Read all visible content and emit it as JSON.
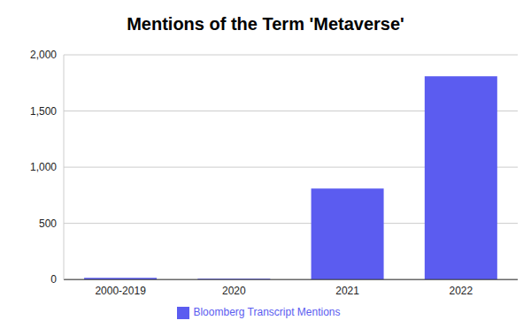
{
  "chart_data": {
    "type": "bar",
    "title": "Mentions of the Term 'Metaverse'",
    "categories": [
      "2000-2019",
      "2020",
      "2021",
      "2022"
    ],
    "series": [
      {
        "name": "Bloomberg Transcript Mentions",
        "color": "#5b5cf0",
        "values": [
          15,
          8,
          810,
          1810
        ]
      }
    ],
    "ylim": [
      0,
      2000
    ],
    "yticks": [
      0,
      500,
      {
        "value": 1000,
        "label": "1,000"
      },
      {
        "value": 1500,
        "label": "1,500"
      },
      {
        "value": 2000,
        "label": "2,000"
      }
    ],
    "grid": true,
    "legend": "bottom"
  }
}
